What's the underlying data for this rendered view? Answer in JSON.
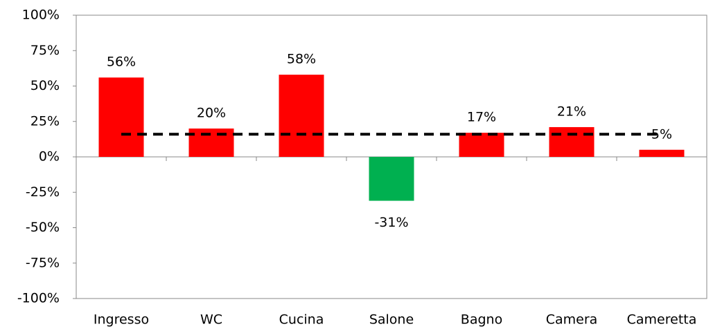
{
  "chart_data": {
    "type": "bar",
    "categories": [
      "Ingresso",
      "WC",
      "Cucina",
      "Salone",
      "Bagno",
      "Camera",
      "Cameretta"
    ],
    "values": [
      56,
      20,
      58,
      -31,
      17,
      21,
      5
    ],
    "value_labels": [
      "56%",
      "20%",
      "58%",
      "-31%",
      "17%",
      "21%",
      "5%"
    ],
    "colors": [
      "#ff0000",
      "#ff0000",
      "#ff0000",
      "#00b050",
      "#ff0000",
      "#ff0000",
      "#ff0000"
    ],
    "reference_line": {
      "value": 16,
      "color": "#000000",
      "dashed": true
    },
    "ylim": [
      -100,
      100
    ],
    "yticks": [
      {
        "value": -100,
        "label": "-100%"
      },
      {
        "value": -75,
        "label": "-75%"
      },
      {
        "value": -50,
        "label": "-50%"
      },
      {
        "value": -25,
        "label": "-25%"
      },
      {
        "value": 0,
        "label": "0%"
      },
      {
        "value": 25,
        "label": "25%"
      },
      {
        "value": 50,
        "label": "50%"
      },
      {
        "value": 75,
        "label": "75%"
      },
      {
        "value": 100,
        "label": "100%"
      }
    ],
    "grid": false
  }
}
